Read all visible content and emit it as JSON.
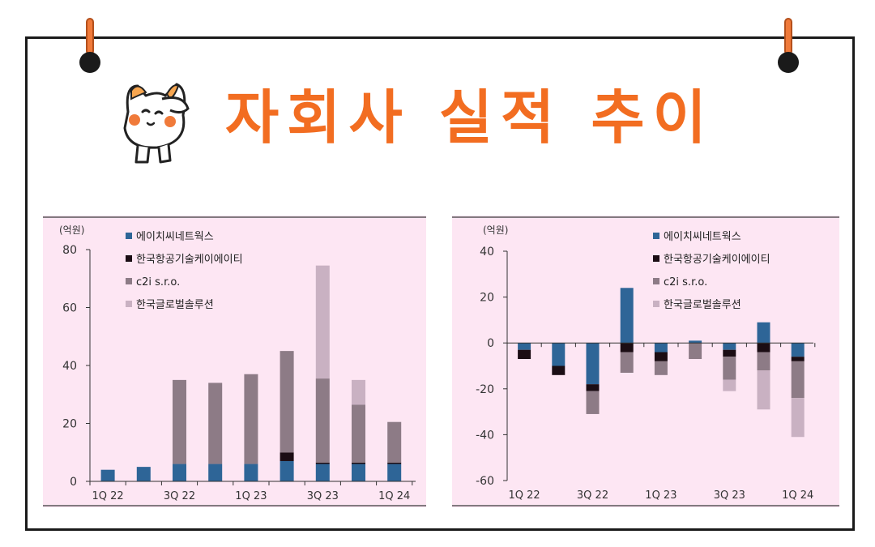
{
  "title": "자회사 실적 추이",
  "colors": {
    "title": "#f26d21",
    "panel_bg": "#fde6f3",
    "series": [
      "#2e6597",
      "#1b0d14",
      "#8d7b86",
      "#c9b1c2"
    ]
  },
  "chart_data": [
    {
      "type": "bar",
      "stacked": true,
      "unit": "(억원)",
      "categories": [
        "1Q 22",
        "2Q 22",
        "3Q 22",
        "4Q 22",
        "1Q 23",
        "2Q 23",
        "3Q 23",
        "4Q 23",
        "1Q 24"
      ],
      "tick_labels": [
        "1Q 22",
        "3Q 22",
        "1Q 23",
        "3Q 23",
        "1Q 24"
      ],
      "tick_label_indices": [
        0,
        2,
        4,
        6,
        8
      ],
      "y_ticks": [
        0,
        20,
        40,
        60,
        80
      ],
      "ylim": [
        0,
        80
      ],
      "legend_placement": "top-left",
      "series": [
        {
          "name": "에이치씨네트웍스",
          "values": [
            4,
            5,
            6,
            6,
            6,
            7,
            6,
            6,
            6
          ]
        },
        {
          "name": "한국항공기술케이에이티",
          "values": [
            0,
            0,
            0,
            0,
            0,
            3,
            0.5,
            0.5,
            0.5
          ]
        },
        {
          "name": "c2i s.r.o.",
          "values": [
            0,
            0,
            29,
            28,
            31,
            35,
            29,
            20,
            14
          ]
        },
        {
          "name": "한국글로벌솔루션",
          "values": [
            0,
            0,
            0,
            0,
            0,
            0,
            39,
            8.5,
            0
          ]
        }
      ]
    },
    {
      "type": "bar",
      "stacked": true,
      "unit": "(억원)",
      "categories": [
        "1Q 22",
        "2Q 22",
        "3Q 22",
        "4Q 22",
        "1Q 23",
        "2Q 23",
        "3Q 23",
        "4Q 23",
        "1Q 24"
      ],
      "tick_labels": [
        "1Q 22",
        "3Q 22",
        "1Q 23",
        "3Q 23",
        "1Q 24"
      ],
      "tick_label_indices": [
        0,
        2,
        4,
        6,
        8
      ],
      "y_ticks": [
        40,
        20,
        0,
        -20,
        -40,
        -60
      ],
      "ylim": [
        -60,
        40
      ],
      "legend_placement": "top-right",
      "series": [
        {
          "name": "에이치씨네트웍스",
          "values": [
            -3,
            -10,
            -18,
            24,
            -4,
            1,
            -3,
            9,
            -6
          ]
        },
        {
          "name": "한국항공기술케이에이티",
          "values": [
            -4,
            -4,
            -3,
            -4,
            -4,
            0,
            -3,
            -4,
            -2
          ]
        },
        {
          "name": "c2i s.r.o.",
          "values": [
            0,
            0,
            -10,
            -9,
            -6,
            -7,
            -10,
            -8,
            -16
          ]
        },
        {
          "name": "한국글로벌솔루션",
          "values": [
            0,
            0,
            0,
            0,
            0,
            0,
            -5,
            -17,
            -17
          ]
        }
      ]
    }
  ]
}
